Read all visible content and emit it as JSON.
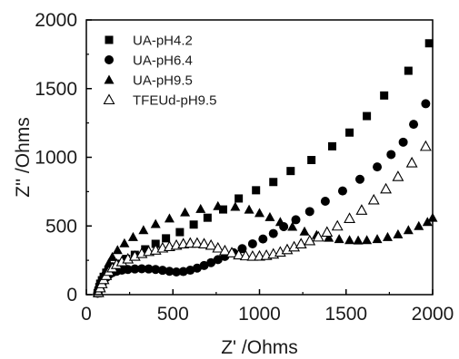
{
  "chart_data": {
    "type": "scatter",
    "xlabel": "Z' /Ohms",
    "ylabel": "Z'' /Ohms",
    "xlim": [
      0,
      2000
    ],
    "ylim": [
      0,
      2000
    ],
    "x_ticks": [
      0,
      500,
      1000,
      1500,
      2000
    ],
    "y_ticks": [
      0,
      500,
      1000,
      1500,
      2000
    ],
    "grid": false,
    "legend_position": "top-left",
    "series": [
      {
        "name": "UA-pH4.2",
        "marker": "square-filled",
        "color": "#000000",
        "points": [
          [
            65,
            10
          ],
          [
            70,
            30
          ],
          [
            75,
            55
          ],
          [
            80,
            80
          ],
          [
            90,
            105
          ],
          [
            100,
            130
          ],
          [
            115,
            160
          ],
          [
            135,
            185
          ],
          [
            160,
            205
          ],
          [
            190,
            225
          ],
          [
            230,
            260
          ],
          [
            280,
            290
          ],
          [
            340,
            330
          ],
          [
            400,
            370
          ],
          [
            460,
            410
          ],
          [
            540,
            455
          ],
          [
            620,
            510
          ],
          [
            700,
            560
          ],
          [
            790,
            620
          ],
          [
            880,
            700
          ],
          [
            980,
            760
          ],
          [
            1080,
            820
          ],
          [
            1180,
            900
          ],
          [
            1300,
            980
          ],
          [
            1420,
            1080
          ],
          [
            1520,
            1180
          ],
          [
            1620,
            1300
          ],
          [
            1720,
            1450
          ],
          [
            1860,
            1630
          ],
          [
            1980,
            1830
          ]
        ]
      },
      {
        "name": "UA-pH6.4",
        "marker": "circle-filled",
        "color": "#000000",
        "points": [
          [
            65,
            10
          ],
          [
            70,
            35
          ],
          [
            80,
            60
          ],
          [
            90,
            85
          ],
          [
            100,
            105
          ],
          [
            115,
            125
          ],
          [
            130,
            145
          ],
          [
            150,
            160
          ],
          [
            175,
            170
          ],
          [
            205,
            178
          ],
          [
            240,
            183
          ],
          [
            280,
            187
          ],
          [
            320,
            188
          ],
          [
            360,
            187
          ],
          [
            400,
            183
          ],
          [
            440,
            177
          ],
          [
            480,
            170
          ],
          [
            520,
            165
          ],
          [
            560,
            168
          ],
          [
            600,
            178
          ],
          [
            640,
            193
          ],
          [
            680,
            212
          ],
          [
            720,
            233
          ],
          [
            760,
            255
          ],
          [
            800,
            278
          ],
          [
            850,
            305
          ],
          [
            900,
            335
          ],
          [
            960,
            370
          ],
          [
            1020,
            405
          ],
          [
            1080,
            445
          ],
          [
            1140,
            495
          ],
          [
            1210,
            545
          ],
          [
            1290,
            605
          ],
          [
            1380,
            680
          ],
          [
            1480,
            755
          ],
          [
            1580,
            840
          ],
          [
            1680,
            930
          ],
          [
            1760,
            1020
          ],
          [
            1830,
            1110
          ],
          [
            1890,
            1240
          ],
          [
            1960,
            1390
          ]
        ]
      },
      {
        "name": "UA-pH9.5",
        "marker": "triangle-filled",
        "color": "#000000",
        "points": [
          [
            70,
            20
          ],
          [
            80,
            60
          ],
          [
            90,
            100
          ],
          [
            100,
            140
          ],
          [
            115,
            185
          ],
          [
            130,
            230
          ],
          [
            150,
            275
          ],
          [
            180,
            325
          ],
          [
            220,
            375
          ],
          [
            270,
            420
          ],
          [
            330,
            470
          ],
          [
            400,
            515
          ],
          [
            480,
            555
          ],
          [
            570,
            600
          ],
          [
            660,
            625
          ],
          [
            760,
            645
          ],
          [
            860,
            640
          ],
          [
            940,
            620
          ],
          [
            1000,
            595
          ],
          [
            1060,
            565
          ],
          [
            1120,
            530
          ],
          [
            1190,
            495
          ],
          [
            1260,
            460
          ],
          [
            1330,
            435
          ],
          [
            1400,
            415
          ],
          [
            1460,
            405
          ],
          [
            1520,
            398
          ],
          [
            1570,
            395
          ],
          [
            1620,
            398
          ],
          [
            1680,
            405
          ],
          [
            1740,
            420
          ],
          [
            1800,
            440
          ],
          [
            1860,
            470
          ],
          [
            1920,
            500
          ],
          [
            1970,
            530
          ],
          [
            2000,
            560
          ],
          [
            2040,
            590
          ],
          [
            2080,
            620
          ]
        ]
      },
      {
        "name": "TFEUd-pH9.5",
        "marker": "triangle-open",
        "color": "#000000",
        "points": [
          [
            70,
            15
          ],
          [
            80,
            50
          ],
          [
            90,
            80
          ],
          [
            100,
            110
          ],
          [
            115,
            140
          ],
          [
            130,
            170
          ],
          [
            150,
            195
          ],
          [
            175,
            220
          ],
          [
            205,
            240
          ],
          [
            240,
            260
          ],
          [
            280,
            280
          ],
          [
            320,
            300
          ],
          [
            360,
            315
          ],
          [
            400,
            325
          ],
          [
            440,
            340
          ],
          [
            480,
            350
          ],
          [
            520,
            360
          ],
          [
            560,
            370
          ],
          [
            600,
            375
          ],
          [
            640,
            375
          ],
          [
            680,
            370
          ],
          [
            720,
            360
          ],
          [
            760,
            340
          ],
          [
            800,
            320
          ],
          [
            840,
            305
          ],
          [
            880,
            290
          ],
          [
            920,
            283
          ],
          [
            960,
            280
          ],
          [
            1000,
            281
          ],
          [
            1040,
            286
          ],
          [
            1080,
            296
          ],
          [
            1120,
            310
          ],
          [
            1160,
            328
          ],
          [
            1200,
            348
          ],
          [
            1240,
            370
          ],
          [
            1290,
            393
          ],
          [
            1340,
            420
          ],
          [
            1390,
            455
          ],
          [
            1450,
            500
          ],
          [
            1520,
            555
          ],
          [
            1590,
            615
          ],
          [
            1660,
            690
          ],
          [
            1730,
            770
          ],
          [
            1800,
            860
          ],
          [
            1880,
            960
          ],
          [
            1960,
            1080
          ]
        ]
      }
    ]
  }
}
